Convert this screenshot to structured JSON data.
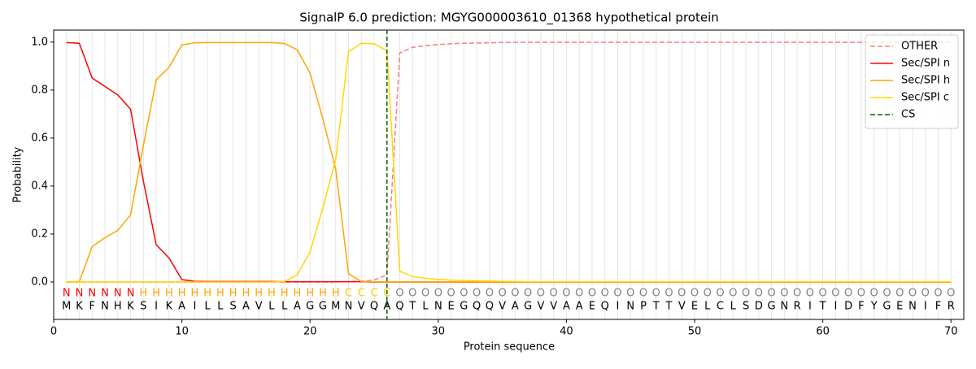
{
  "chart_data": {
    "type": "line",
    "title": "SignalP 6.0 prediction: MGYG000003610_01368 hypothetical protein",
    "x_label": "Protein sequence",
    "y_label": "Probability",
    "xlim": [
      0,
      71
    ],
    "ylim": [
      -0.156,
      1.05
    ],
    "xticks": [
      0,
      10,
      20,
      30,
      40,
      50,
      60,
      70
    ],
    "yticks": [
      {
        "value": 0,
        "label": "0.0"
      },
      {
        "value": 0.2,
        "label": "0.2"
      },
      {
        "value": 0.4,
        "label": "0.4"
      },
      {
        "value": 0.6,
        "label": "0.6"
      },
      {
        "value": 0.8,
        "label": "0.8"
      },
      {
        "value": 1,
        "label": "1.0"
      }
    ],
    "grid": true,
    "legend": "upper right",
    "x": [
      1,
      2,
      3,
      4,
      5,
      6,
      7,
      8,
      9,
      10,
      11,
      12,
      13,
      14,
      15,
      16,
      17,
      18,
      19,
      20,
      21,
      22,
      23,
      24,
      25,
      26,
      27,
      28,
      29,
      30,
      31,
      32,
      33,
      34,
      35,
      36,
      37,
      38,
      39,
      40,
      41,
      42,
      43,
      44,
      45,
      46,
      47,
      48,
      49,
      50,
      51,
      52,
      53,
      54,
      55,
      56,
      57,
      58,
      59,
      60,
      61,
      62,
      63,
      64,
      65,
      66,
      67,
      68,
      69,
      70
    ],
    "sequence": [
      "M",
      "K",
      "F",
      "N",
      "H",
      "K",
      "S",
      "I",
      "K",
      "A",
      "I",
      "L",
      "L",
      "S",
      "A",
      "V",
      "L",
      "L",
      "A",
      "G",
      "G",
      "M",
      "N",
      "V",
      "Q",
      "A",
      "Q",
      "T",
      "L",
      "N",
      "E",
      "G",
      "Q",
      "Q",
      "V",
      "A",
      "G",
      "V",
      "V",
      "A",
      "A",
      "E",
      "Q",
      "I",
      "N",
      "P",
      "T",
      "T",
      "V",
      "E",
      "L",
      "C",
      "L",
      "S",
      "D",
      "G",
      "N",
      "R",
      "I",
      "T",
      "I",
      "D",
      "F",
      "Y",
      "G",
      "E",
      "N",
      "I",
      "F",
      "R"
    ],
    "labels": [
      "N",
      "N",
      "N",
      "N",
      "N",
      "N",
      "H",
      "H",
      "H",
      "H",
      "H",
      "H",
      "H",
      "H",
      "H",
      "H",
      "H",
      "H",
      "H",
      "H",
      "H",
      "H",
      "C",
      "C",
      "C",
      "C",
      "O",
      "O",
      "O",
      "O",
      "O",
      "O",
      "O",
      "O",
      "O",
      "O",
      "O",
      "O",
      "O",
      "O",
      "O",
      "O",
      "O",
      "O",
      "O",
      "O",
      "O",
      "O",
      "O",
      "O",
      "O",
      "O",
      "O",
      "O",
      "O",
      "O",
      "O",
      "O",
      "O",
      "O",
      "O",
      "O",
      "O",
      "O",
      "O",
      "O",
      "O",
      "O",
      "O",
      "O"
    ],
    "label_colors": {
      "N": "#ff0000",
      "H": "#ffa500",
      "C": "#ffc800",
      "O": "#808080"
    },
    "series": [
      {
        "name": "OTHER",
        "color": "#f08080",
        "dashed": true,
        "values": [
          0,
          0,
          0,
          0,
          0,
          0,
          0,
          0,
          0,
          0,
          0,
          0,
          0,
          0,
          0,
          0,
          0,
          0,
          0,
          0,
          0,
          0,
          0.001,
          0.003,
          0.008,
          0.03,
          0.955,
          0.978,
          0.985,
          0.99,
          0.993,
          0.995,
          0.996,
          0.997,
          0.998,
          0.999,
          0.999,
          0.999,
          0.999,
          0.999,
          0.999,
          0.999,
          0.999,
          0.999,
          0.999,
          0.999,
          0.999,
          0.999,
          0.999,
          0.999,
          0.999,
          0.999,
          0.999,
          0.999,
          0.999,
          0.999,
          0.999,
          0.999,
          0.999,
          0.999,
          0.999,
          0.999,
          0.999,
          0.999,
          0.999,
          0.999,
          0.999,
          0.999,
          0.999,
          0.999
        ]
      },
      {
        "name": "Sec/SPI n",
        "color": "#ff0000",
        "values": [
          0.998,
          0.995,
          0.85,
          0.815,
          0.78,
          0.72,
          0.42,
          0.155,
          0.1,
          0.01,
          0.003,
          0.002,
          0.002,
          0.002,
          0.002,
          0.002,
          0.002,
          0.001,
          0.001,
          0.001,
          0.001,
          0.001,
          0.001,
          0.001,
          0,
          0,
          0,
          0,
          0,
          0,
          0,
          0,
          0,
          0,
          0,
          0,
          0,
          0,
          0,
          0,
          0,
          0,
          0,
          0,
          0,
          0,
          0,
          0,
          0,
          0,
          0,
          0,
          0,
          0,
          0,
          0,
          0,
          0,
          0,
          0,
          0,
          0,
          0,
          0,
          0,
          0,
          0,
          0,
          0,
          0
        ]
      },
      {
        "name": "Sec/SPI h",
        "color": "#ffa500",
        "values": [
          0,
          0.002,
          0.147,
          0.185,
          0.215,
          0.28,
          0.57,
          0.843,
          0.895,
          0.988,
          0.997,
          0.998,
          0.998,
          0.998,
          0.998,
          0.998,
          0.998,
          0.994,
          0.968,
          0.87,
          0.68,
          0.47,
          0.035,
          0.002,
          0.001,
          0,
          0,
          0,
          0,
          0,
          0,
          0,
          0,
          0,
          0,
          0,
          0,
          0,
          0,
          0,
          0,
          0,
          0,
          0,
          0,
          0,
          0,
          0,
          0,
          0,
          0,
          0,
          0,
          0,
          0,
          0,
          0,
          0,
          0,
          0,
          0,
          0,
          0,
          0,
          0,
          0,
          0,
          0,
          0,
          0
        ]
      },
      {
        "name": "Sec/SPI c",
        "color": "#ffd700",
        "values": [
          0,
          0,
          0,
          0,
          0,
          0,
          0,
          0,
          0,
          0,
          0,
          0,
          0,
          0,
          0,
          0,
          0,
          0.002,
          0.03,
          0.125,
          0.31,
          0.51,
          0.96,
          0.995,
          0.993,
          0.965,
          0.045,
          0.022,
          0.015,
          0.011,
          0.008,
          0.006,
          0.005,
          0.004,
          0.003,
          0.002,
          0.001,
          0.001,
          0.001,
          0.001,
          0.001,
          0.001,
          0.001,
          0.001,
          0.001,
          0.001,
          0.001,
          0.001,
          0.001,
          0.001,
          0.001,
          0.001,
          0.001,
          0.001,
          0.001,
          0.001,
          0.001,
          0.001,
          0.001,
          0.001,
          0.001,
          0.001,
          0.001,
          0.001,
          0.001,
          0.001,
          0.001,
          0.001,
          0.001,
          0.001
        ]
      }
    ],
    "markers": [
      {
        "name": "CS",
        "color": "#006400",
        "x": 26
      }
    ]
  }
}
